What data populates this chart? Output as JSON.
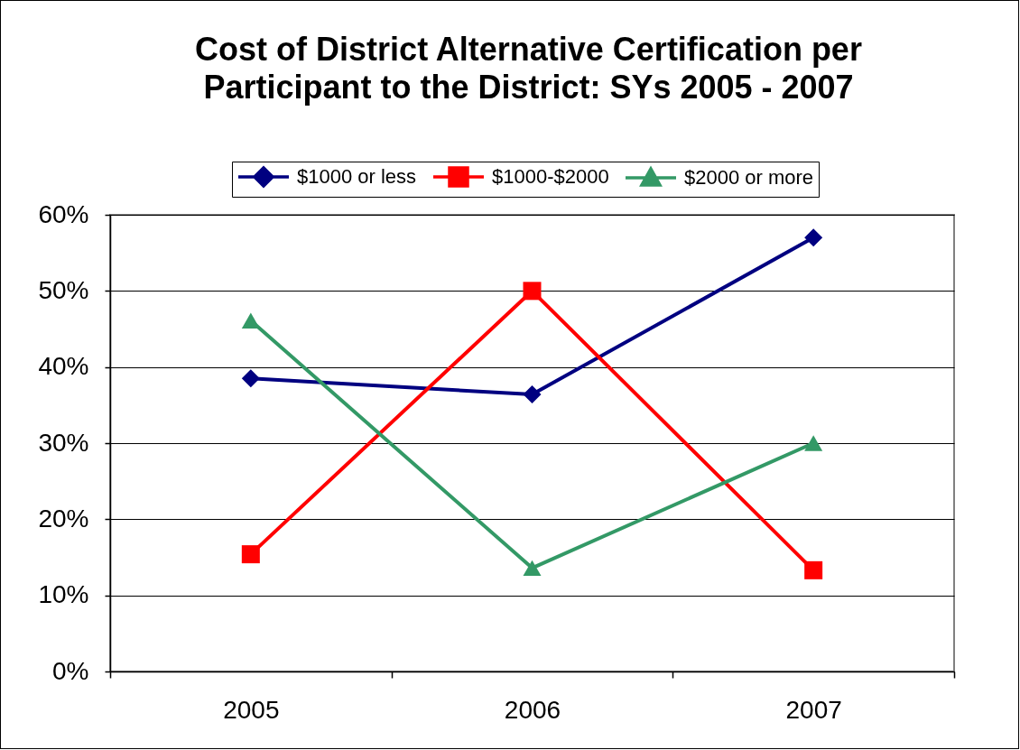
{
  "chart_data": {
    "type": "line",
    "title": "Cost of District Alternative Certification per Participant to the District: SYs 2005 - 2007",
    "categories": [
      "2005",
      "2006",
      "2007"
    ],
    "series": [
      {
        "name": "$1000 or less",
        "color": "#000080",
        "marker": "diamond",
        "values": [
          38.5,
          36.4,
          57
        ]
      },
      {
        "name": "$1000-$2000",
        "color": "#ff0000",
        "marker": "square",
        "values": [
          15.4,
          50,
          13.3
        ]
      },
      {
        "name": "$2000 or more",
        "color": "#339966",
        "marker": "triangle",
        "values": [
          46.1,
          13.6,
          30
        ]
      }
    ],
    "ylim": [
      0,
      60
    ],
    "yticks": [
      {
        "value": 0,
        "label": "0%"
      },
      {
        "value": 10,
        "label": "10%"
      },
      {
        "value": 20,
        "label": "20%"
      },
      {
        "value": 30,
        "label": "30%"
      },
      {
        "value": 40,
        "label": "40%"
      },
      {
        "value": 50,
        "label": "50%"
      },
      {
        "value": 60,
        "label": "60%"
      }
    ],
    "grid": "y",
    "legend": "top",
    "line_style": "solid"
  }
}
